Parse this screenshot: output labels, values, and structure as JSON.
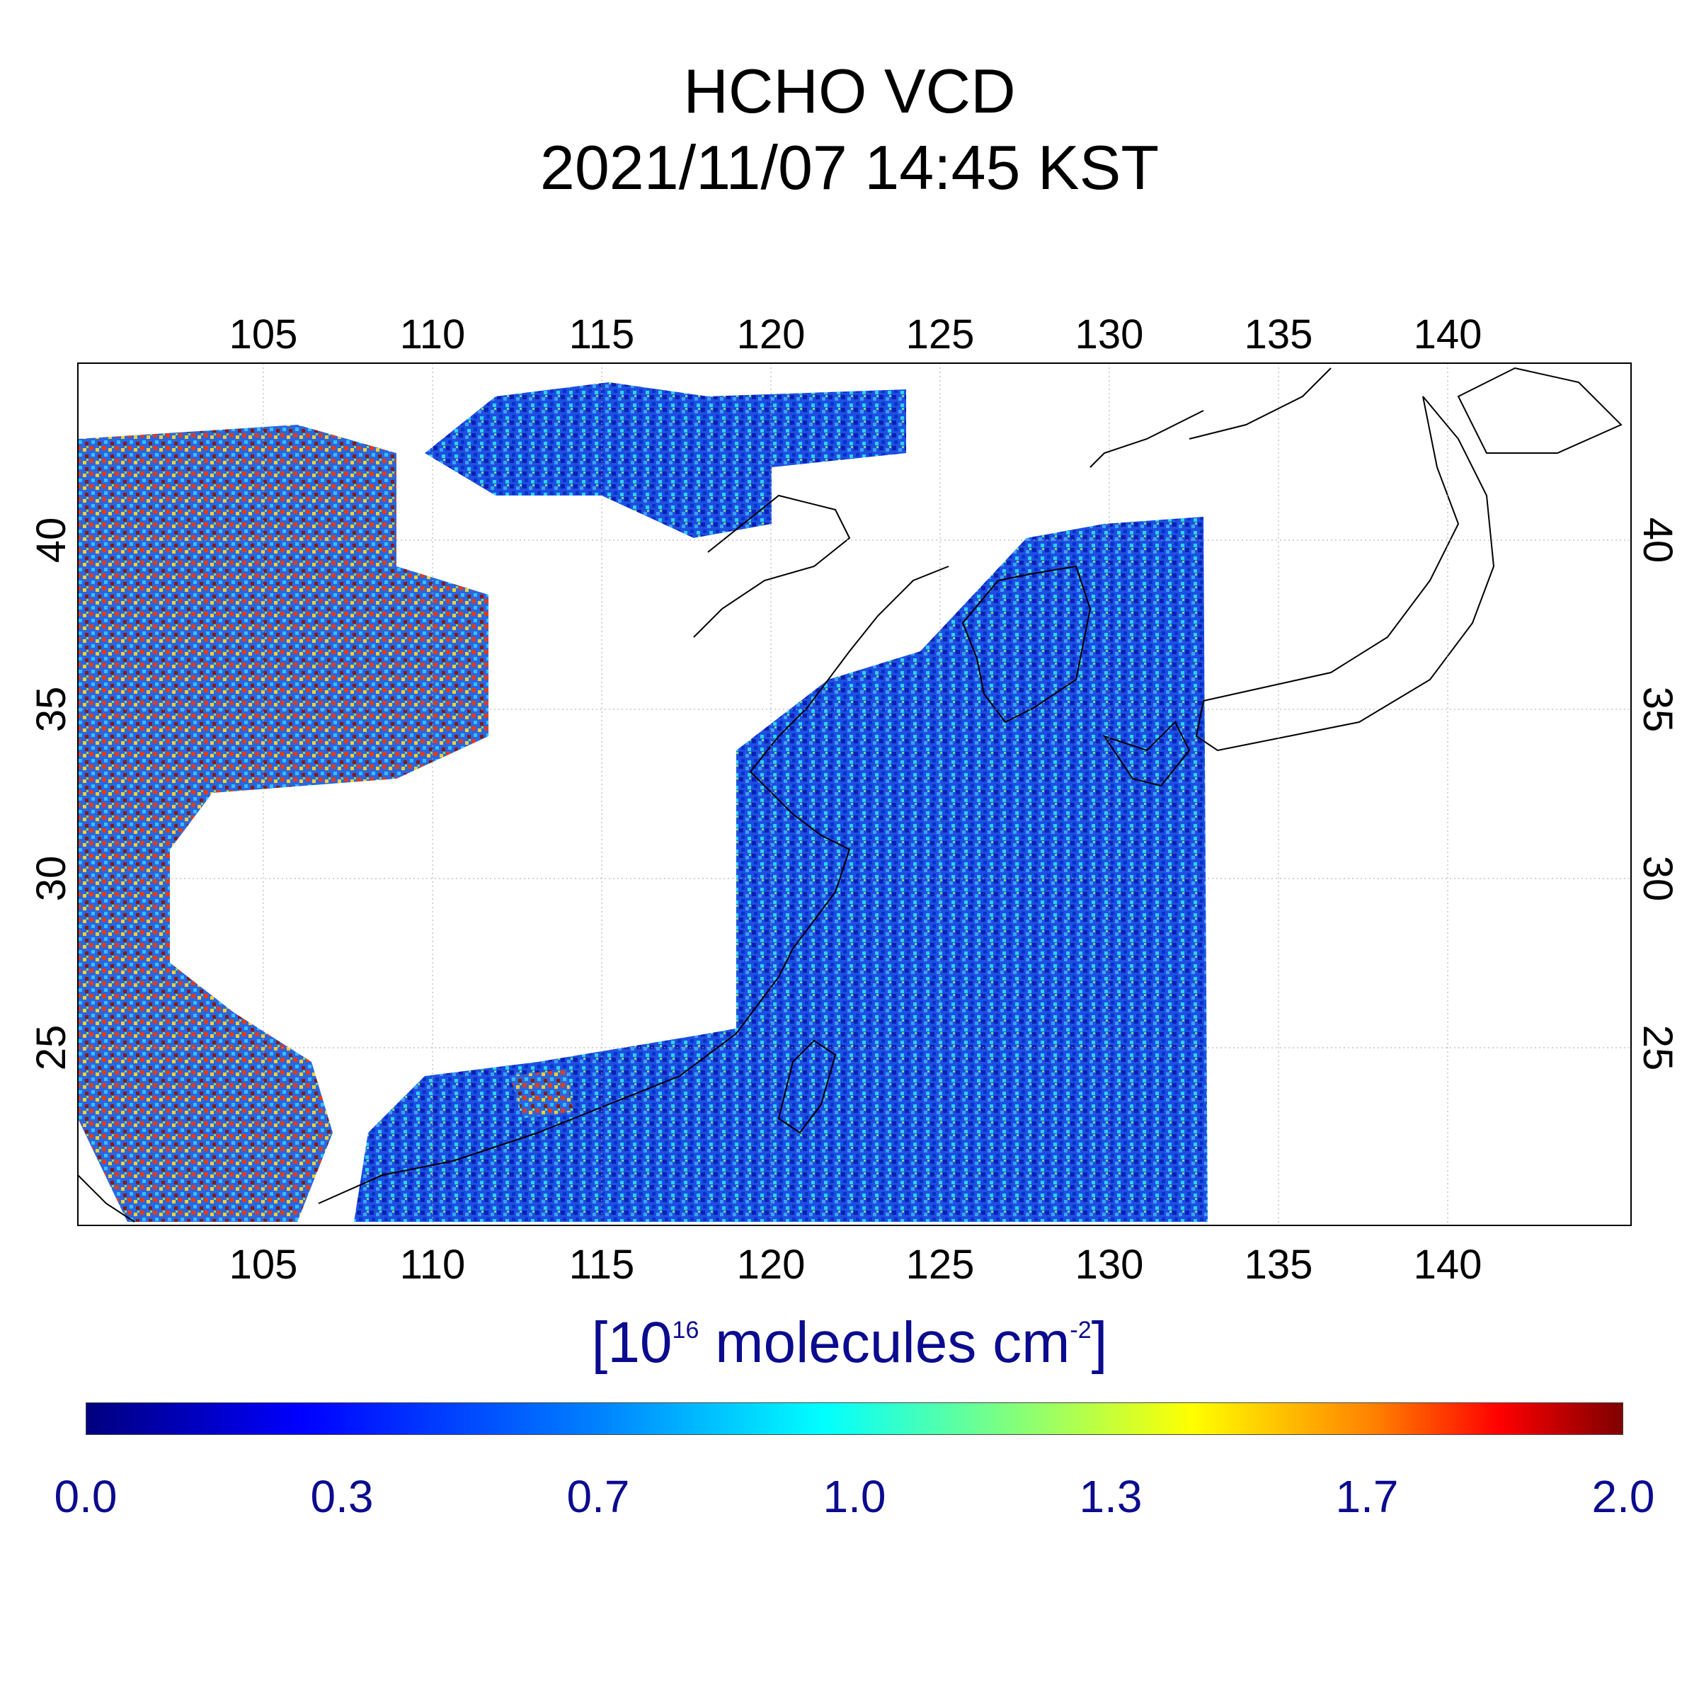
{
  "title": {
    "line1": "HCHO VCD",
    "line2": "2021/11/07 14:45 KST"
  },
  "map": {
    "lon_range": [
      100,
      146
    ],
    "lat_range": [
      20,
      45.5
    ],
    "lon_ticks": [
      "105",
      "110",
      "115",
      "120",
      "125",
      "130",
      "135",
      "140"
    ],
    "lat_ticks": [
      "40",
      "35",
      "30",
      "25"
    ],
    "grid": true,
    "colors": {
      "coast": "#000000",
      "grid": "#aaaaaa"
    }
  },
  "colorbar": {
    "unit_prefix": "[10",
    "unit_exp1": "16",
    "unit_mid": " molecules cm",
    "unit_exp2": "-2",
    "unit_suffix": "]",
    "tick_labels": [
      "0.0",
      "0.3",
      "0.7",
      "1.0",
      "1.3",
      "1.7",
      "2.0"
    ],
    "range": [
      0.0,
      2.0
    ],
    "colormap": [
      "#00007f",
      "#0000ff",
      "#007fff",
      "#00ffff",
      "#7fff7f",
      "#ffff00",
      "#ff7f00",
      "#ff0000",
      "#7f0000"
    ]
  }
}
